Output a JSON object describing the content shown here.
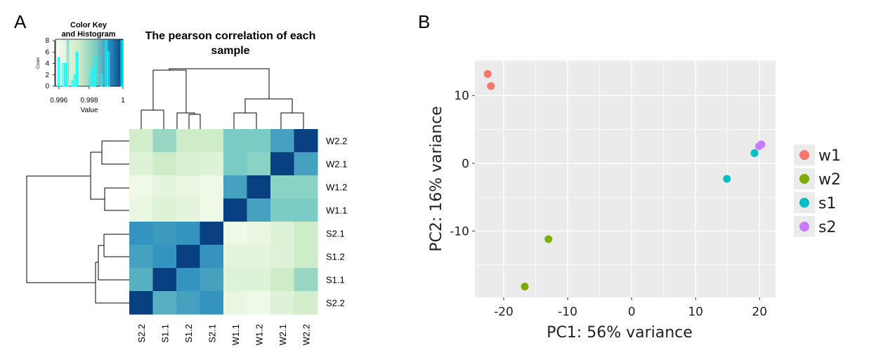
{
  "panels": {
    "a_label": "A",
    "b_label": "B"
  },
  "heatmap": {
    "title_line1": "The pearson correlation of each",
    "title_line2": "sample",
    "color_key": {
      "title_line1": "Color Key",
      "title_line2": "and Histogram",
      "xlabel": "Value",
      "ylabel": "Count",
      "x_ticks": [
        "0.996",
        "0.998",
        "1"
      ],
      "y_ticks": [
        "0",
        "2",
        "4",
        "6",
        "8"
      ]
    }
  },
  "chart_data": [
    {
      "type": "heatmap",
      "title": "The pearson correlation of each sample",
      "rows": [
        "W2.2",
        "W2.1",
        "W1.2",
        "W1.1",
        "S2.1",
        "S1.2",
        "S1.1",
        "S2.2"
      ],
      "columns": [
        "S2.2",
        "S1.1",
        "S1.2",
        "S2.1",
        "W1.1",
        "W1.2",
        "W2.1",
        "W2.2"
      ],
      "value_range": [
        0.9955,
        1
      ],
      "values": [
        [
          0.9968,
          0.9978,
          0.997,
          0.997,
          0.9982,
          0.9982,
          0.9988,
          1.0
        ],
        [
          0.9964,
          0.997,
          0.9966,
          0.9964,
          0.9982,
          0.998,
          1.0,
          0.9988
        ],
        [
          0.9958,
          0.9962,
          0.996,
          0.9958,
          0.9988,
          1.0,
          0.998,
          0.998
        ],
        [
          0.996,
          0.9964,
          0.9962,
          0.9958,
          1.0,
          0.9988,
          0.9982,
          0.9982
        ],
        [
          0.999,
          0.9989,
          0.999,
          1.0,
          0.9958,
          0.996,
          0.9964,
          0.997
        ],
        [
          0.9988,
          0.999,
          1.0,
          0.999,
          0.9962,
          0.9962,
          0.9964,
          0.997
        ],
        [
          0.9986,
          1.0,
          0.999,
          0.9988,
          0.9964,
          0.9964,
          0.997,
          0.9978
        ],
        [
          1.0,
          0.9986,
          0.9988,
          0.999,
          0.996,
          0.9958,
          0.9964,
          0.9968
        ]
      ]
    },
    {
      "type": "scatter",
      "xlabel": "PC1: 56% variance",
      "ylabel": "PC2: 16% variance",
      "xlim": [
        -24.5,
        22.5
      ],
      "ylim": [
        -19.8,
        15.2
      ],
      "x_ticks": [
        "-20",
        "-10",
        "0",
        "10",
        "20"
      ],
      "y_ticks": [
        "-10",
        "0",
        "10"
      ],
      "legend_position": "right",
      "series": [
        {
          "name": "w1",
          "color": "#F8766D",
          "points": [
            [
              -22.5,
              13.2
            ],
            [
              -22.0,
              11.4
            ]
          ]
        },
        {
          "name": "w2",
          "color": "#7CAE00",
          "points": [
            [
              -13.0,
              -11.2
            ],
            [
              -16.7,
              -18.2
            ]
          ]
        },
        {
          "name": "s1",
          "color": "#00BFC4",
          "points": [
            [
              19.2,
              1.5
            ],
            [
              14.9,
              -2.3
            ]
          ]
        },
        {
          "name": "s2",
          "color": "#C77CFF",
          "points": [
            [
              19.9,
              2.5
            ],
            [
              20.3,
              2.8
            ]
          ]
        }
      ]
    }
  ]
}
